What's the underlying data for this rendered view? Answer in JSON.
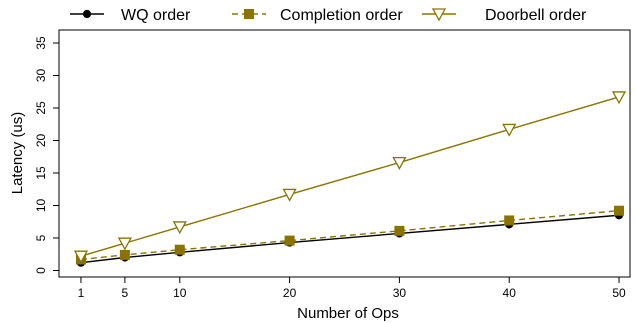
{
  "chart_data": {
    "type": "line",
    "xlabel": "Number of Ops",
    "ylabel": "Latency (us)",
    "x": [
      1,
      5,
      10,
      20,
      30,
      40,
      50
    ],
    "xticks": [
      "1",
      "5",
      "10",
      "20",
      "30",
      "40",
      "50"
    ],
    "yticks": [
      "0",
      "5",
      "10",
      "15",
      "20",
      "25",
      "30",
      "35"
    ],
    "xlim": [
      -1,
      51
    ],
    "ylim": [
      -1,
      37
    ],
    "grid": false,
    "legend_position": "top, outside plot",
    "series": [
      {
        "name": "WQ order",
        "values": [
          1.2,
          2.0,
          2.8,
          4.3,
          5.7,
          7.1,
          8.5
        ],
        "color": "#000000",
        "dash": "solid",
        "marker": "circle"
      },
      {
        "name": "Completion order",
        "values": [
          1.7,
          2.4,
          3.2,
          4.6,
          6.1,
          7.7,
          9.2
        ],
        "color": "#8b7300",
        "dash": "dashed",
        "marker": "square"
      },
      {
        "name": "Doorbell order",
        "values": [
          2.2,
          4.2,
          6.7,
          11.7,
          16.6,
          21.7,
          26.7
        ],
        "color": "#8b7300",
        "dash": "solid",
        "marker": "triangle-down"
      }
    ]
  }
}
